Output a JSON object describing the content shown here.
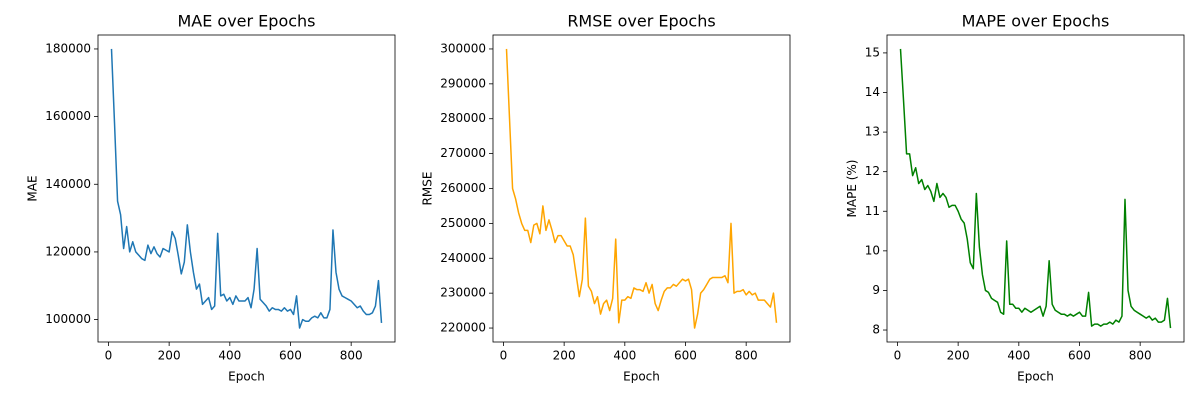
{
  "chart_data": [
    {
      "type": "line",
      "title": "MAE over Epochs",
      "x_label": "Epoch",
      "y_label": "MAE",
      "color": "#1f77b4",
      "x": [
        10,
        20,
        30,
        40,
        50,
        60,
        70,
        80,
        90,
        100,
        110,
        120,
        130,
        140,
        150,
        160,
        170,
        180,
        190,
        200,
        210,
        220,
        230,
        240,
        250,
        260,
        270,
        280,
        290,
        300,
        310,
        320,
        330,
        340,
        350,
        360,
        370,
        380,
        390,
        400,
        410,
        420,
        430,
        440,
        450,
        460,
        470,
        480,
        490,
        500,
        510,
        520,
        530,
        540,
        550,
        560,
        570,
        580,
        590,
        600,
        610,
        620,
        630,
        640,
        650,
        660,
        670,
        680,
        690,
        700,
        710,
        720,
        730,
        740,
        750,
        760,
        770,
        780,
        790,
        800,
        810,
        820,
        830,
        840,
        850,
        860,
        870,
        880,
        890,
        900
      ],
      "values": [
        180000,
        158000,
        135000,
        131000,
        121000,
        127500,
        120000,
        123000,
        120000,
        119000,
        118000,
        117500,
        122000,
        119500,
        121500,
        119500,
        118500,
        121000,
        120500,
        120000,
        126000,
        124000,
        119000,
        113500,
        117000,
        128000,
        120000,
        114000,
        109000,
        110500,
        104500,
        105500,
        106500,
        103000,
        104000,
        125500,
        107000,
        107500,
        105500,
        106500,
        104500,
        107000,
        105500,
        105500,
        105500,
        106500,
        103500,
        109000,
        121000,
        106000,
        105000,
        104000,
        102500,
        103500,
        103000,
        103000,
        102500,
        103500,
        102500,
        103000,
        101500,
        107000,
        97500,
        100000,
        99500,
        99500,
        100500,
        101000,
        100500,
        102000,
        100500,
        100500,
        103000,
        126500,
        114000,
        109000,
        107000,
        106500,
        106000,
        105500,
        104500,
        103500,
        104000,
        102500,
        101500,
        101500,
        102000,
        104000,
        111500,
        99000
      ],
      "xlim": [
        -34.5,
        944.5
      ],
      "xticks": [
        0,
        200,
        400,
        600,
        800
      ],
      "ylim": [
        93375,
        184125
      ],
      "yticks": [
        100000,
        120000,
        140000,
        160000,
        180000
      ]
    },
    {
      "type": "line",
      "title": "RMSE over Epochs",
      "x_label": "Epoch",
      "y_label": "RMSE",
      "color": "#ffa500",
      "x": [
        10,
        20,
        30,
        40,
        50,
        60,
        70,
        80,
        90,
        100,
        110,
        120,
        130,
        140,
        150,
        160,
        170,
        180,
        190,
        200,
        210,
        220,
        230,
        240,
        250,
        260,
        270,
        280,
        290,
        300,
        310,
        320,
        330,
        340,
        350,
        360,
        370,
        380,
        390,
        400,
        410,
        420,
        430,
        440,
        450,
        460,
        470,
        480,
        490,
        500,
        510,
        520,
        530,
        540,
        550,
        560,
        570,
        580,
        590,
        600,
        610,
        620,
        630,
        640,
        650,
        660,
        670,
        680,
        690,
        700,
        710,
        720,
        730,
        740,
        750,
        760,
        770,
        780,
        790,
        800,
        810,
        820,
        830,
        840,
        850,
        860,
        870,
        880,
        890,
        900
      ],
      "values": [
        300000,
        280000,
        260000,
        257000,
        253000,
        250000,
        248000,
        248000,
        244500,
        249500,
        250000,
        247000,
        255000,
        248000,
        251000,
        248000,
        244500,
        246500,
        246500,
        245000,
        243500,
        243500,
        241000,
        235000,
        229000,
        234000,
        251500,
        232000,
        230500,
        227000,
        229000,
        224000,
        227000,
        228000,
        225000,
        228500,
        245500,
        221500,
        228000,
        228000,
        229000,
        228500,
        231500,
        231000,
        231000,
        230500,
        233000,
        230000,
        232500,
        227000,
        225000,
        228000,
        230500,
        231500,
        231500,
        232500,
        232000,
        233000,
        234000,
        233500,
        234000,
        231000,
        220000,
        224000,
        230000,
        231000,
        232500,
        234000,
        234500,
        234500,
        234500,
        234500,
        235000,
        233000,
        250000,
        230000,
        230500,
        230500,
        231000,
        229500,
        230500,
        229500,
        230000,
        228000,
        228000,
        228000,
        227000,
        226000,
        230000,
        221500
      ],
      "xlim": [
        -34.5,
        944.5
      ],
      "xticks": [
        0,
        200,
        400,
        600,
        800
      ],
      "ylim": [
        216000,
        304000
      ],
      "yticks": [
        220000,
        230000,
        240000,
        250000,
        260000,
        270000,
        280000,
        290000,
        300000
      ]
    },
    {
      "type": "line",
      "title": "MAPE over Epochs",
      "x_label": "Epoch",
      "y_label": "MAPE (%)",
      "color": "#008000",
      "x": [
        10,
        20,
        30,
        40,
        50,
        60,
        70,
        80,
        90,
        100,
        110,
        120,
        130,
        140,
        150,
        160,
        170,
        180,
        190,
        200,
        210,
        220,
        230,
        240,
        250,
        260,
        270,
        280,
        290,
        300,
        310,
        320,
        330,
        340,
        350,
        360,
        370,
        380,
        390,
        400,
        410,
        420,
        430,
        440,
        450,
        460,
        470,
        480,
        490,
        500,
        510,
        520,
        530,
        540,
        550,
        560,
        570,
        580,
        590,
        600,
        610,
        620,
        630,
        640,
        650,
        660,
        670,
        680,
        690,
        700,
        710,
        720,
        730,
        740,
        750,
        760,
        770,
        780,
        790,
        800,
        810,
        820,
        830,
        840,
        850,
        860,
        870,
        880,
        890,
        900
      ],
      "values": [
        15.1,
        13.8,
        12.45,
        12.45,
        11.9,
        12.1,
        11.7,
        11.8,
        11.55,
        11.65,
        11.5,
        11.25,
        11.7,
        11.35,
        11.45,
        11.35,
        11.1,
        11.15,
        11.15,
        11.0,
        10.8,
        10.7,
        10.3,
        9.7,
        9.55,
        11.45,
        10.1,
        9.4,
        9.0,
        8.95,
        8.8,
        8.75,
        8.7,
        8.45,
        8.4,
        10.25,
        8.65,
        8.65,
        8.55,
        8.55,
        8.45,
        8.55,
        8.5,
        8.45,
        8.5,
        8.55,
        8.6,
        8.35,
        8.6,
        9.75,
        8.65,
        8.5,
        8.45,
        8.4,
        8.4,
        8.35,
        8.4,
        8.35,
        8.4,
        8.45,
        8.35,
        8.35,
        8.95,
        8.1,
        8.15,
        8.15,
        8.1,
        8.15,
        8.15,
        8.2,
        8.15,
        8.25,
        8.2,
        8.35,
        11.3,
        9.0,
        8.6,
        8.5,
        8.45,
        8.4,
        8.35,
        8.3,
        8.35,
        8.25,
        8.3,
        8.2,
        8.2,
        8.25,
        8.8,
        8.05
      ],
      "xlim": [
        -34.5,
        944.5
      ],
      "xticks": [
        0,
        200,
        400,
        600,
        800
      ],
      "ylim": [
        7.6975,
        15.4525
      ],
      "yticks": [
        8,
        9,
        10,
        11,
        12,
        13,
        14,
        15
      ]
    }
  ]
}
